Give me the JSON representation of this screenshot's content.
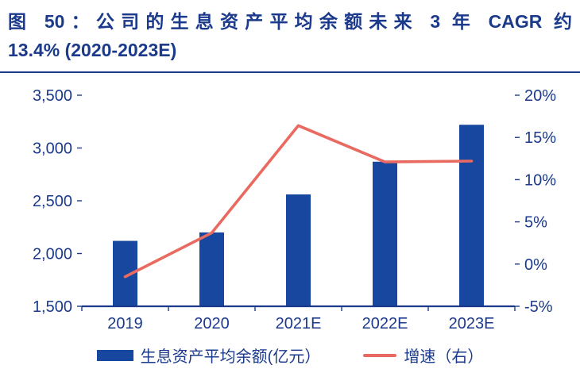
{
  "figure": {
    "title_lines": [
      "图 50：公司的生息资产平均余额未来 3 年 CAGR 约",
      "13.4% (2020-2023E)"
    ]
  },
  "colors": {
    "navy": "#1B3A8C",
    "bar_blue": "#17479E",
    "line_red": "#E96A60"
  },
  "chart_data": {
    "type": "bar",
    "subtype": "bar+line combo, dual axis",
    "categories": [
      "2019",
      "2020",
      "2021E",
      "2022E",
      "2023E"
    ],
    "series": [
      {
        "name": "生息资产平均余额(亿元）",
        "type": "bar",
        "axis": "left",
        "values": [
          2120,
          2200,
          2560,
          2870,
          3220
        ]
      },
      {
        "name": "增速（右）",
        "type": "line",
        "axis": "right",
        "values": [
          -1.5,
          3.7,
          16.4,
          12.1,
          12.2
        ]
      }
    ],
    "left_axis": {
      "min": 1500,
      "max": 3500,
      "step": 500,
      "tick_labels": [
        "1,500",
        "2,000",
        "2,500",
        "3,000",
        "3,500"
      ]
    },
    "right_axis": {
      "min": -5,
      "max": 20,
      "step": 5,
      "tick_labels": [
        "-5%",
        "0%",
        "5%",
        "10%",
        "15%",
        "20%"
      ]
    },
    "grid": false,
    "legend_position": "bottom"
  }
}
